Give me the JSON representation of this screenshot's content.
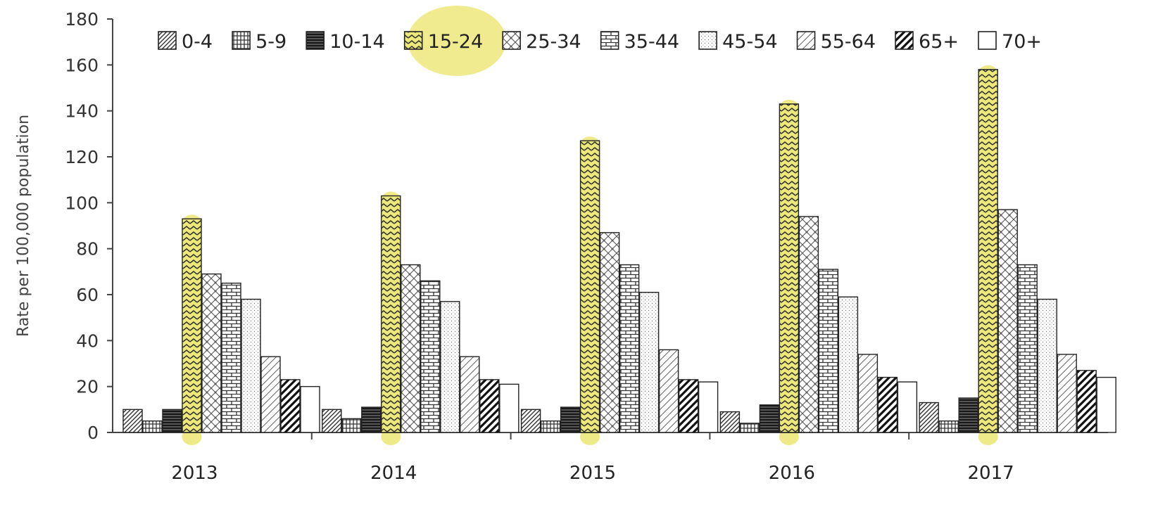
{
  "chart_data": {
    "type": "bar",
    "ylabel": "Rate per 100,000 population",
    "xlabel": "",
    "ylim": [
      0,
      180
    ],
    "yticks": [
      "0",
      "20",
      "40",
      "60",
      "80",
      "100",
      "120",
      "140",
      "160",
      "180"
    ],
    "categories": [
      "2013",
      "2014",
      "2015",
      "2016",
      "2017"
    ],
    "legend_position": "top",
    "grid": false,
    "highlight_series": "15-24",
    "highlight_color": "#ece87a",
    "series": [
      {
        "name": "0-4",
        "pattern": "diag-fine",
        "values": [
          10,
          10,
          10,
          9,
          13
        ]
      },
      {
        "name": "5-9",
        "pattern": "grid-vertical",
        "values": [
          5,
          6,
          5,
          4,
          5
        ]
      },
      {
        "name": "10-14",
        "pattern": "horiz-dense",
        "values": [
          10,
          11,
          11,
          12,
          15
        ]
      },
      {
        "name": "15-24",
        "pattern": "zigzag",
        "values": [
          93,
          103,
          127,
          143,
          158
        ]
      },
      {
        "name": "25-34",
        "pattern": "crosshatch",
        "values": [
          69,
          73,
          87,
          94,
          97
        ]
      },
      {
        "name": "35-44",
        "pattern": "brick",
        "values": [
          65,
          66,
          73,
          71,
          73
        ]
      },
      {
        "name": "45-54",
        "pattern": "dots",
        "values": [
          58,
          57,
          61,
          59,
          58
        ]
      },
      {
        "name": "55-64",
        "pattern": "diag-wide",
        "values": [
          33,
          33,
          36,
          34,
          34
        ]
      },
      {
        "name": "65+",
        "pattern": "diag-bold",
        "values": [
          23,
          23,
          23,
          24,
          27
        ]
      },
      {
        "name": "70+",
        "pattern": "solid-white",
        "values": [
          20,
          21,
          22,
          22,
          24
        ]
      }
    ]
  }
}
